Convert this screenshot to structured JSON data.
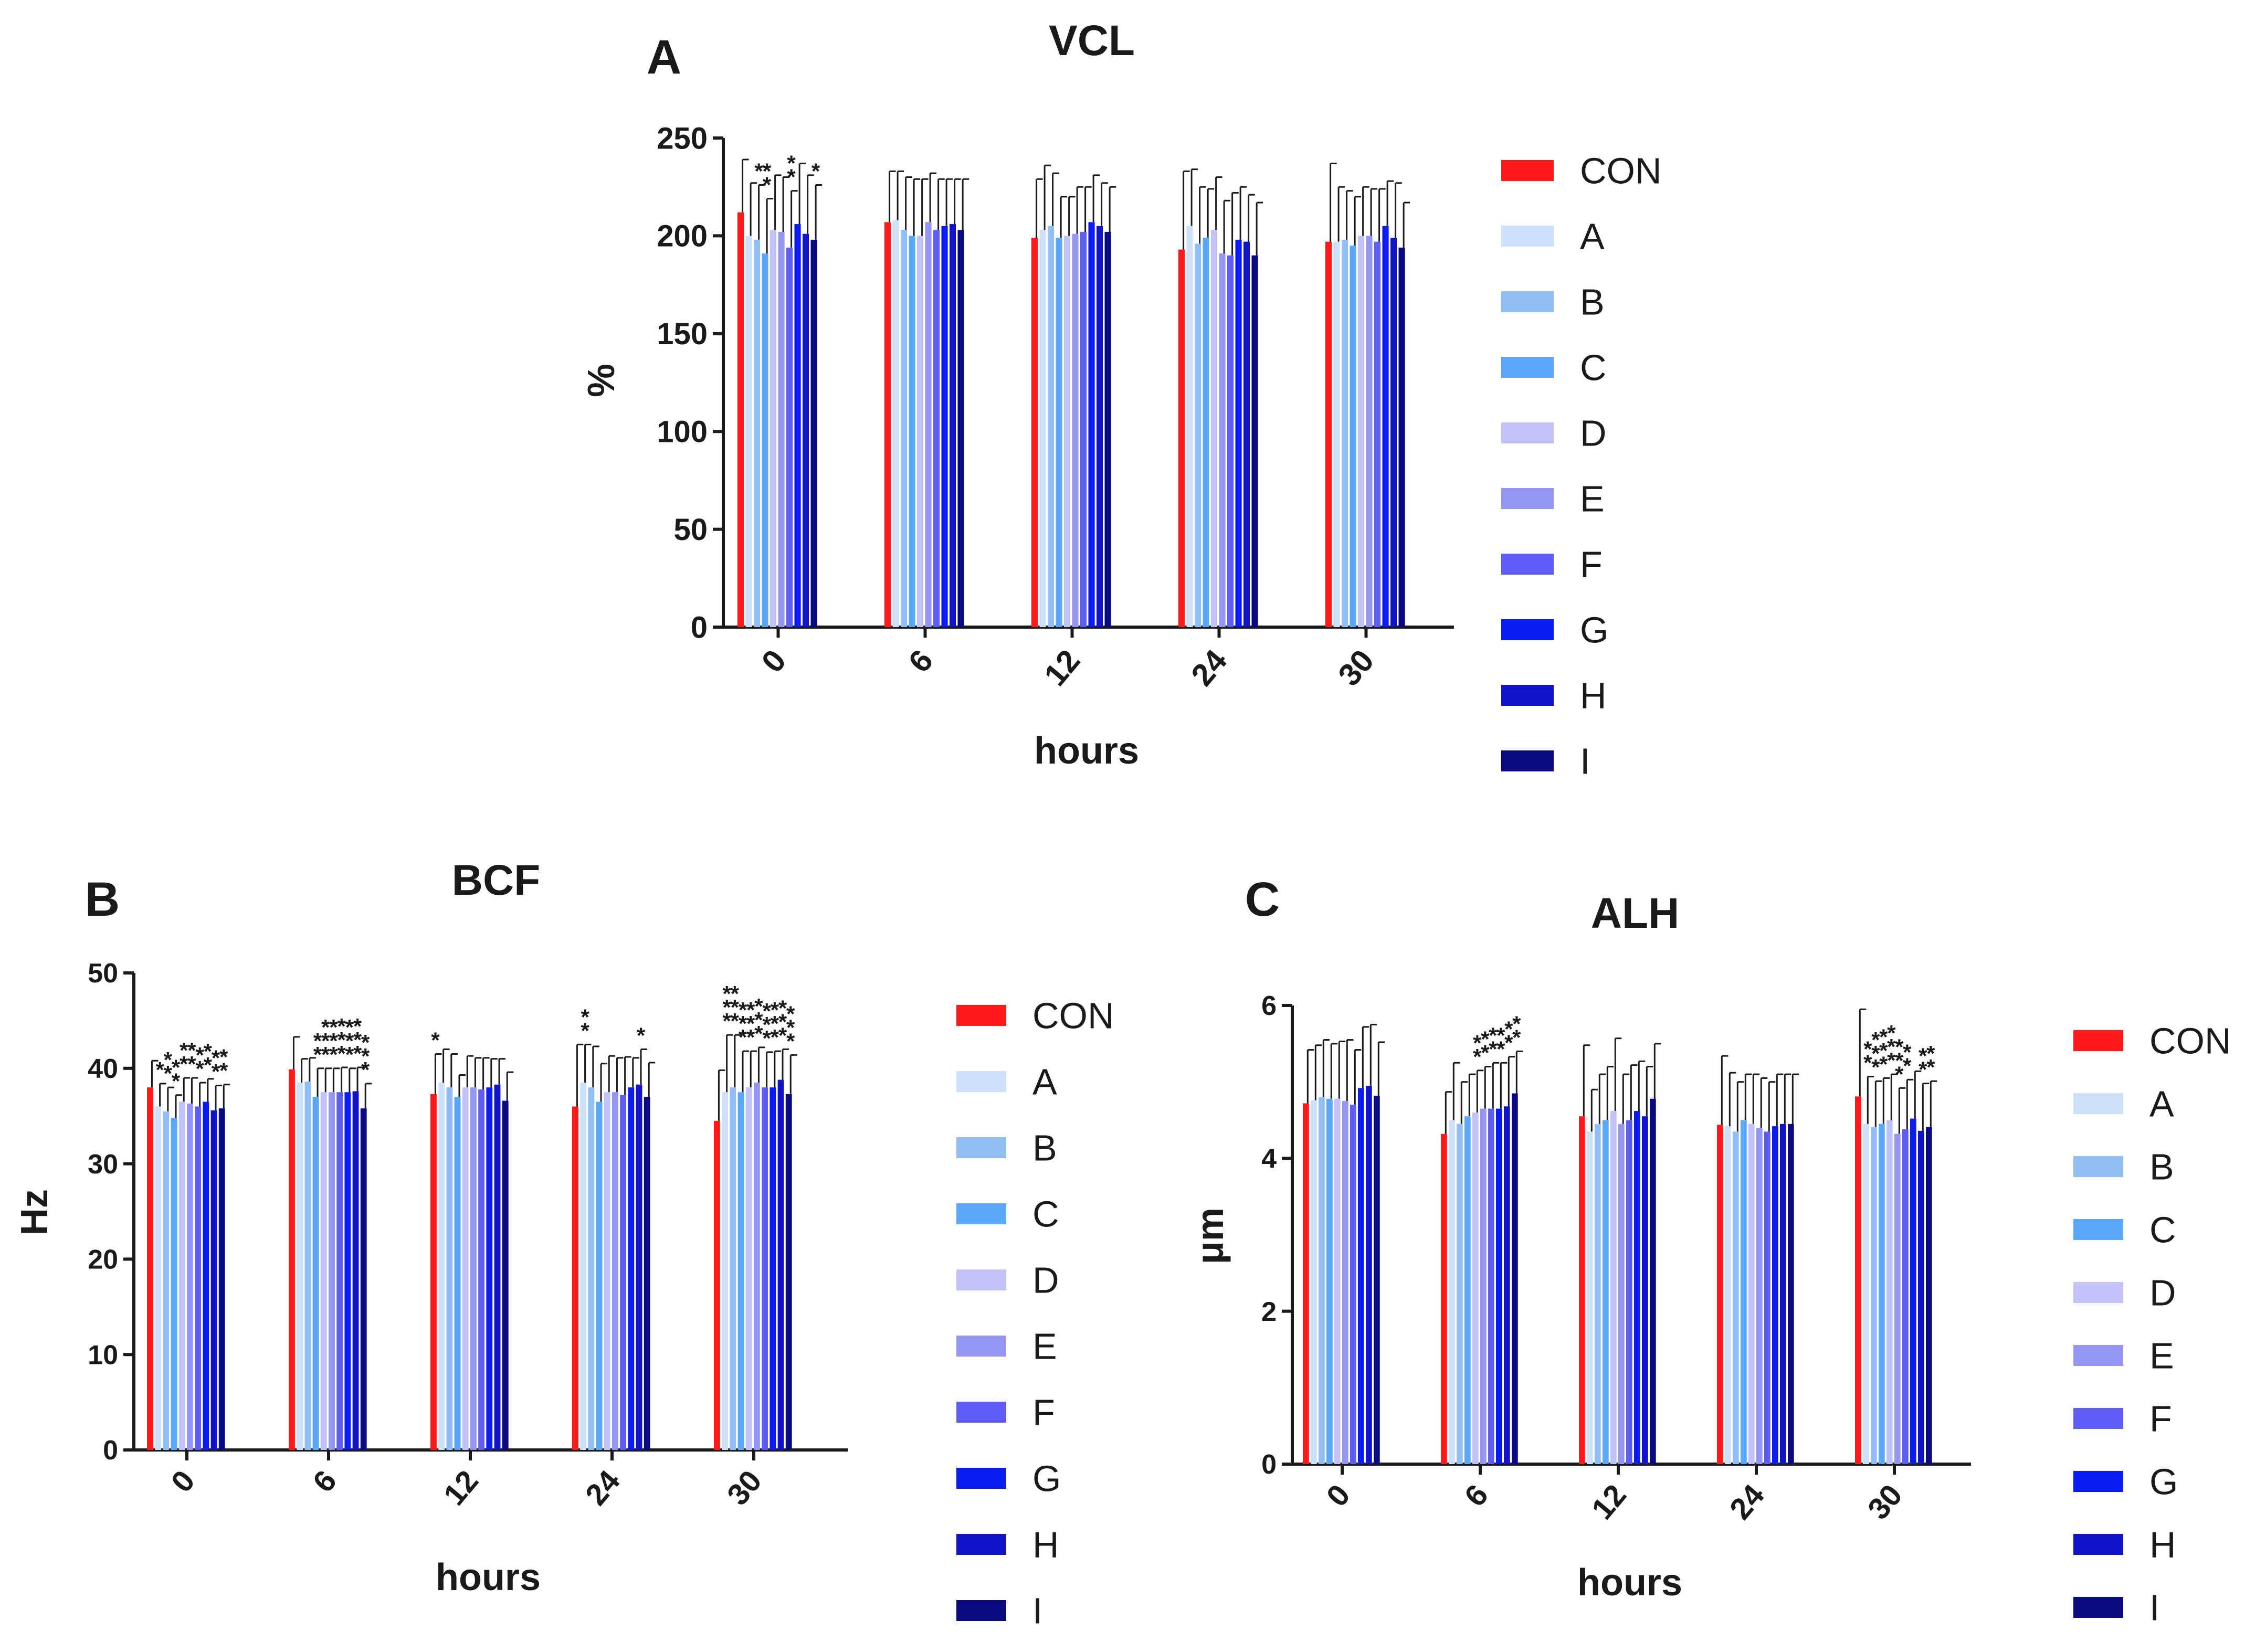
{
  "legend_labels": [
    "CON",
    "A",
    "B",
    "C",
    "D",
    "E",
    "F",
    "G",
    "H",
    "I"
  ],
  "series_colors": [
    "#ff1a1a",
    "#cce0fa",
    "#92bef3",
    "#5aa6f7",
    "#c2c2fb",
    "#9595f3",
    "#5d5df5",
    "#0a1cf3",
    "#1212c8",
    "#0a0a80"
  ],
  "chart_data": [
    {
      "panel": "A",
      "type": "bar",
      "title": "VCL",
      "xlabel": "hours",
      "ylabel": "%",
      "ylim": [
        0,
        250
      ],
      "yticks": [
        0,
        50,
        100,
        150,
        200,
        250
      ],
      "categories": [
        "0",
        "6",
        "12",
        "24",
        "30"
      ],
      "series": [
        {
          "name": "CON",
          "values": [
            212,
            207,
            199,
            193,
            197
          ],
          "errors": [
            27,
            26,
            30,
            40,
            40
          ]
        },
        {
          "name": "A",
          "values": [
            200,
            208,
            203,
            205,
            197
          ],
          "errors": [
            27,
            25,
            33,
            29,
            28
          ]
        },
        {
          "name": "B",
          "values": [
            198,
            203,
            205,
            196,
            198
          ],
          "errors": [
            28,
            27,
            27,
            29,
            25
          ]
        },
        {
          "name": "C",
          "values": [
            191,
            200,
            199,
            199,
            195
          ],
          "errors": [
            28,
            29,
            21,
            25,
            25
          ]
        },
        {
          "name": "D",
          "values": [
            203,
            200,
            200,
            203,
            200
          ],
          "errors": [
            28,
            29,
            20,
            27,
            25
          ]
        },
        {
          "name": "E",
          "values": [
            202,
            207,
            201,
            191,
            200
          ],
          "errors": [
            28,
            25,
            24,
            27,
            24
          ]
        },
        {
          "name": "F",
          "values": [
            194,
            203,
            202,
            190,
            197
          ],
          "errors": [
            29,
            26,
            23,
            32,
            27
          ]
        },
        {
          "name": "G",
          "values": [
            206,
            205,
            207,
            198,
            205
          ],
          "errors": [
            31,
            24,
            24,
            27,
            23
          ]
        },
        {
          "name": "H",
          "values": [
            201,
            206,
            205,
            197,
            199
          ],
          "errors": [
            30,
            23,
            22,
            24,
            28
          ]
        },
        {
          "name": "I",
          "values": [
            198,
            203,
            202,
            190,
            194
          ],
          "errors": [
            28,
            26,
            23,
            27,
            23
          ]
        }
      ],
      "annotations": [
        {
          "category": "0",
          "series": "B",
          "text": "*"
        },
        {
          "category": "0",
          "series": "C",
          "text": "**"
        },
        {
          "category": "0",
          "series": "C",
          "text": "*"
        },
        {
          "category": "0",
          "series": "F",
          "text": "**"
        },
        {
          "category": "0",
          "series": "I",
          "text": "*"
        }
      ]
    },
    {
      "panel": "B",
      "type": "bar",
      "title": "BCF",
      "xlabel": "hours",
      "ylabel": "Hz",
      "ylim": [
        0,
        50
      ],
      "yticks": [
        0,
        10,
        20,
        30,
        40,
        50
      ],
      "categories": [
        "0",
        "6",
        "12",
        "24",
        "30"
      ],
      "series": [
        {
          "name": "CON",
          "values": [
            38.0,
            39.9,
            37.3,
            36.0,
            34.5
          ],
          "errors": [
            2.8,
            3.4,
            4.2,
            6.5,
            5.3
          ]
        },
        {
          "name": "A",
          "values": [
            36.0,
            38.5,
            38.5,
            38.5,
            37.5
          ],
          "errors": [
            2.4,
            2.5,
            3.5,
            4.0,
            6.0
          ]
        },
        {
          "name": "B",
          "values": [
            35.5,
            38.6,
            38.0,
            38.0,
            38.0
          ],
          "errors": [
            2.5,
            2.5,
            3.5,
            4.3,
            5.5
          ]
        },
        {
          "name": "C",
          "values": [
            34.8,
            37.0,
            37.0,
            36.5,
            37.5
          ],
          "errors": [
            2.4,
            3.0,
            2.3,
            4.0,
            4.3
          ]
        },
        {
          "name": "D",
          "values": [
            36.5,
            37.5,
            38.0,
            37.5,
            38.0
          ],
          "errors": [
            2.5,
            2.5,
            3.3,
            3.8,
            3.8
          ]
        },
        {
          "name": "E",
          "values": [
            36.3,
            37.5,
            38.0,
            37.5,
            38.5
          ],
          "errors": [
            2.7,
            2.5,
            3.1,
            3.6,
            3.7
          ]
        },
        {
          "name": "F",
          "values": [
            36.0,
            37.5,
            37.8,
            37.2,
            38.0
          ],
          "errors": [
            2.5,
            2.6,
            3.3,
            4.0,
            3.7
          ]
        },
        {
          "name": "G",
          "values": [
            36.5,
            37.5,
            38.0,
            38.0,
            38.0
          ],
          "errors": [
            2.4,
            2.5,
            3.0,
            3.1,
            3.8
          ]
        },
        {
          "name": "H",
          "values": [
            35.6,
            37.6,
            38.3,
            38.3,
            38.8
          ],
          "errors": [
            2.6,
            2.5,
            2.7,
            3.7,
            3.2
          ]
        },
        {
          "name": "I",
          "values": [
            35.8,
            35.8,
            36.6,
            37.0,
            37.3
          ],
          "errors": [
            2.5,
            2.6,
            3.0,
            3.6,
            4.1
          ]
        }
      ],
      "annotations": [
        {
          "category": "0",
          "series": "A",
          "text": "*"
        },
        {
          "category": "0",
          "series": "B",
          "text": "**"
        },
        {
          "category": "0",
          "series": "C",
          "text": "**"
        },
        {
          "category": "0",
          "series": "D",
          "text": "**"
        },
        {
          "category": "0",
          "series": "E",
          "text": "**"
        },
        {
          "category": "0",
          "series": "F",
          "text": "**"
        },
        {
          "category": "0",
          "series": "G",
          "text": "**"
        },
        {
          "category": "0",
          "series": "H",
          "text": "**"
        },
        {
          "category": "0",
          "series": "I",
          "text": "**"
        },
        {
          "category": "6",
          "series": "C",
          "text": "**"
        },
        {
          "category": "6",
          "series": "D",
          "text": "***"
        },
        {
          "category": "6",
          "series": "E",
          "text": "***"
        },
        {
          "category": "6",
          "series": "F",
          "text": "***"
        },
        {
          "category": "6",
          "series": "G",
          "text": "***"
        },
        {
          "category": "6",
          "series": "H",
          "text": "***"
        },
        {
          "category": "6",
          "series": "I",
          "text": "***"
        },
        {
          "category": "12",
          "series": "CON",
          "text": "*"
        },
        {
          "category": "24",
          "series": "A",
          "text": "**"
        },
        {
          "category": "24",
          "series": "H",
          "text": "*"
        },
        {
          "category": "30",
          "series": "A",
          "text": "***"
        },
        {
          "category": "30",
          "series": "B",
          "text": "***"
        },
        {
          "category": "30",
          "series": "C",
          "text": "***"
        },
        {
          "category": "30",
          "series": "D",
          "text": "***"
        },
        {
          "category": "30",
          "series": "E",
          "text": "***"
        },
        {
          "category": "30",
          "series": "F",
          "text": "***"
        },
        {
          "category": "30",
          "series": "G",
          "text": "***"
        },
        {
          "category": "30",
          "series": "H",
          "text": "***"
        },
        {
          "category": "30",
          "series": "I",
          "text": "***"
        }
      ]
    },
    {
      "panel": "C",
      "type": "bar",
      "title": "ALH",
      "xlabel": "hours",
      "ylabel": "μm",
      "ylim": [
        0,
        6
      ],
      "yticks": [
        0,
        2,
        4,
        6
      ],
      "categories": [
        "0",
        "6",
        "12",
        "24",
        "30"
      ],
      "series": [
        {
          "name": "CON",
          "values": [
            4.72,
            4.32,
            4.55,
            4.44,
            4.81
          ],
          "errors": [
            0.7,
            0.55,
            0.93,
            0.9,
            1.14
          ]
        },
        {
          "name": "A",
          "values": [
            4.76,
            4.5,
            4.35,
            4.42,
            4.45
          ],
          "errors": [
            0.72,
            0.75,
            0.55,
            0.7,
            0.62
          ]
        },
        {
          "name": "B",
          "values": [
            4.8,
            4.45,
            4.45,
            4.35,
            4.41
          ],
          "errors": [
            0.75,
            0.55,
            0.65,
            0.65,
            0.6
          ]
        },
        {
          "name": "C",
          "values": [
            4.78,
            4.55,
            4.5,
            4.5,
            4.45
          ],
          "errors": [
            0.72,
            0.55,
            0.7,
            0.6,
            0.6
          ]
        },
        {
          "name": "D",
          "values": [
            4.78,
            4.6,
            4.62,
            4.45,
            4.5
          ],
          "errors": [
            0.75,
            0.55,
            0.95,
            0.65,
            0.6
          ]
        },
        {
          "name": "E",
          "values": [
            4.75,
            4.65,
            4.45,
            4.4,
            4.32
          ],
          "errors": [
            0.8,
            0.55,
            0.65,
            0.65,
            0.6
          ]
        },
        {
          "name": "F",
          "values": [
            4.7,
            4.65,
            4.5,
            4.35,
            4.38
          ],
          "errors": [
            0.72,
            0.6,
            0.72,
            0.65,
            0.65
          ]
        },
        {
          "name": "G",
          "values": [
            4.92,
            4.65,
            4.62,
            4.42,
            4.52
          ],
          "errors": [
            0.8,
            0.6,
            0.65,
            0.68,
            0.62
          ]
        },
        {
          "name": "H",
          "values": [
            4.95,
            4.68,
            4.55,
            4.45,
            4.36
          ],
          "errors": [
            0.8,
            0.65,
            0.65,
            0.65,
            0.62
          ]
        },
        {
          "name": "I",
          "values": [
            4.82,
            4.85,
            4.78,
            4.45,
            4.41
          ],
          "errors": [
            0.7,
            0.55,
            0.72,
            0.65,
            0.6
          ]
        }
      ],
      "annotations": [
        {
          "category": "6",
          "series": "D",
          "text": "**"
        },
        {
          "category": "6",
          "series": "E",
          "text": "**"
        },
        {
          "category": "6",
          "series": "F",
          "text": "**"
        },
        {
          "category": "6",
          "series": "G",
          "text": "**"
        },
        {
          "category": "6",
          "series": "H",
          "text": "**"
        },
        {
          "category": "6",
          "series": "I",
          "text": "**"
        },
        {
          "category": "30",
          "series": "A",
          "text": "**"
        },
        {
          "category": "30",
          "series": "B",
          "text": "***"
        },
        {
          "category": "30",
          "series": "C",
          "text": "***"
        },
        {
          "category": "30",
          "series": "D",
          "text": "***"
        },
        {
          "category": "30",
          "series": "E",
          "text": "***"
        },
        {
          "category": "30",
          "series": "F",
          "text": "**"
        },
        {
          "category": "30",
          "series": "H",
          "text": "**"
        },
        {
          "category": "30",
          "series": "I",
          "text": "**"
        }
      ]
    }
  ]
}
